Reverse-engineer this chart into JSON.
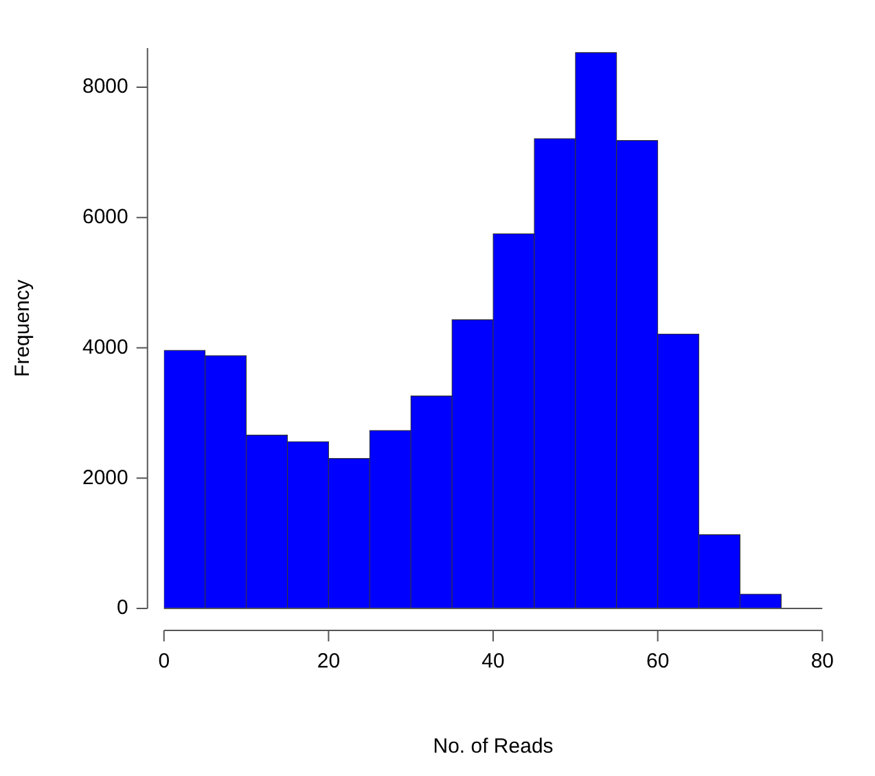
{
  "chart_data": {
    "type": "histogram",
    "xlabel": "No. of Reads",
    "ylabel": "Frequency",
    "bins": [
      0,
      5,
      10,
      15,
      20,
      25,
      30,
      35,
      40,
      45,
      50,
      55,
      60,
      65,
      70,
      75
    ],
    "values": [
      3960,
      3880,
      2660,
      2560,
      2300,
      2730,
      3260,
      4430,
      5750,
      7210,
      8530,
      7180,
      4210,
      1130,
      220
    ],
    "color": "#0000ff",
    "xlim": [
      0,
      80
    ],
    "xticks": [
      0,
      20,
      40,
      60,
      80
    ],
    "ylim": [
      0,
      8600
    ],
    "yticks": [
      0,
      2000,
      4000,
      6000,
      8000
    ],
    "grid": false,
    "legend": false
  }
}
